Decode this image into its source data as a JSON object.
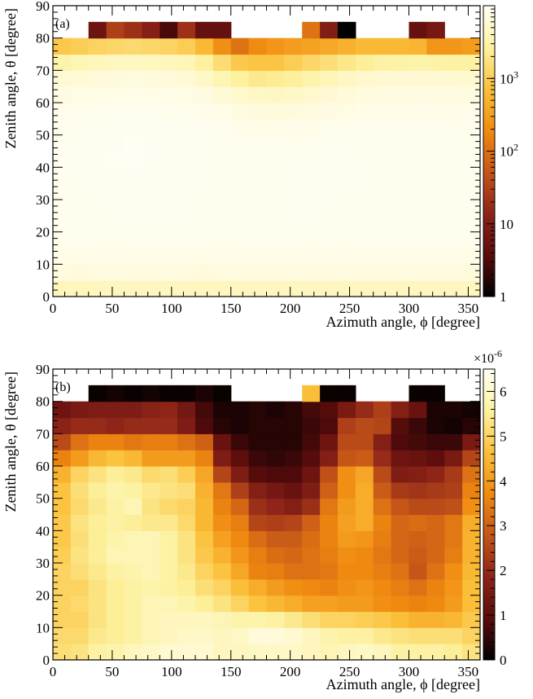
{
  "chart_data": [
    {
      "type": "heatmap",
      "panel_label": "(a)",
      "xlabel": "Azimuth angle, ϕ [degree]",
      "ylabel": "Zenith angle, θ [degree]",
      "xlim": [
        0,
        360
      ],
      "ylim": [
        0,
        90
      ],
      "x_bin_width": 15,
      "y_bin_width": 5,
      "x_ticks": [
        0,
        50,
        100,
        150,
        200,
        250,
        300,
        350
      ],
      "y_ticks": [
        0,
        10,
        20,
        30,
        40,
        50,
        60,
        70,
        80,
        90
      ],
      "colorbar": {
        "scale": "log",
        "range": [
          1,
          10000
        ],
        "ticks": [
          1,
          10,
          100,
          1000
        ],
        "tick_labels": [
          {
            "base": "1",
            "exp": ""
          },
          {
            "base": "10",
            "exp": ""
          },
          {
            "base": "10",
            "exp": "2"
          },
          {
            "base": "10",
            "exp": "3"
          }
        ],
        "multiplier": ""
      },
      "colormap": [
        "#000000",
        "#5a0c0c",
        "#8c2318",
        "#c45518",
        "#f08a10",
        "#fbc03a",
        "#fdf2a0",
        "#fffef5"
      ],
      "z_rows_from_bottom": [
        [
          4200,
          4200,
          4300,
          4300,
          4300,
          4300,
          4300,
          4300,
          4300,
          4300,
          4300,
          4300,
          4300,
          4300,
          4300,
          4300,
          4300,
          4300,
          4300,
          4300,
          4300,
          4300,
          4300,
          4300
        ],
        [
          7000,
          6800,
          7000,
          7000,
          7000,
          7000,
          7000,
          7000,
          6800,
          7000,
          7000,
          7000,
          7000,
          7000,
          7000,
          7000,
          7000,
          7000,
          7000,
          7000,
          7000,
          7000,
          7000,
          6800
        ],
        [
          8000,
          8200,
          8200,
          8300,
          8200,
          8400,
          8400,
          8200,
          8200,
          8300,
          8300,
          8300,
          8200,
          8200,
          8300,
          8300,
          8300,
          8200,
          8200,
          8300,
          8200,
          8300,
          8200,
          8200
        ],
        [
          8500,
          8600,
          8700,
          8700,
          8800,
          8800,
          8800,
          8700,
          8600,
          8700,
          8800,
          8800,
          8600,
          8700,
          8700,
          8800,
          8600,
          8700,
          8800,
          8700,
          8800,
          8800,
          8700,
          8700
        ],
        [
          8700,
          8800,
          8900,
          9000,
          9000,
          9000,
          9000,
          9000,
          8900,
          8800,
          8900,
          8900,
          8900,
          9000,
          9000,
          9000,
          9000,
          8900,
          9000,
          9000,
          9000,
          8900,
          8900,
          8800
        ],
        [
          8900,
          9000,
          9000,
          9100,
          9200,
          9200,
          9100,
          9100,
          9000,
          8900,
          8900,
          9000,
          9000,
          9100,
          9100,
          9000,
          9000,
          9000,
          9000,
          9000,
          9000,
          9000,
          8900,
          8900
        ],
        [
          9000,
          9000,
          9100,
          9200,
          9200,
          9200,
          9200,
          9100,
          9000,
          8900,
          8900,
          9000,
          9000,
          9000,
          9100,
          9100,
          9000,
          9000,
          9000,
          9000,
          9000,
          9000,
          9000,
          8900
        ],
        [
          9000,
          9100,
          9200,
          9300,
          9400,
          9300,
          9200,
          9100,
          9100,
          9000,
          9000,
          9000,
          9000,
          9100,
          9100,
          9100,
          9100,
          9100,
          9000,
          9000,
          9000,
          9000,
          9000,
          8900
        ],
        [
          9100,
          9200,
          9300,
          9500,
          9500,
          9400,
          9300,
          9200,
          9100,
          9000,
          8900,
          8900,
          8900,
          9000,
          9000,
          9100,
          9100,
          9000,
          9000,
          9000,
          9000,
          9000,
          9000,
          8900
        ],
        [
          9000,
          9100,
          9200,
          9400,
          9500,
          9400,
          9300,
          9200,
          9100,
          8900,
          8800,
          8700,
          8700,
          8700,
          8800,
          8900,
          8900,
          8900,
          8900,
          8900,
          8900,
          8900,
          8900,
          8900
        ],
        [
          8800,
          8900,
          9000,
          9100,
          9200,
          9200,
          9100,
          9000,
          8900,
          8600,
          8400,
          8200,
          8200,
          8300,
          8400,
          8500,
          8600,
          8700,
          8700,
          8700,
          8800,
          8800,
          8700,
          8700
        ],
        [
          8400,
          8500,
          8700,
          8800,
          8800,
          8800,
          8700,
          8600,
          8300,
          7800,
          7000,
          6800,
          6800,
          6900,
          7100,
          7400,
          7700,
          8000,
          8100,
          8200,
          8300,
          8300,
          8300,
          8300
        ],
        [
          7500,
          7700,
          7900,
          8100,
          8200,
          8100,
          8000,
          7800,
          7200,
          6300,
          5200,
          4800,
          4600,
          4900,
          5400,
          6000,
          6600,
          7000,
          7200,
          7300,
          7400,
          7300,
          7300,
          7300
        ],
        [
          6000,
          6200,
          6600,
          6800,
          7000,
          6800,
          6600,
          6200,
          5000,
          3600,
          2600,
          2100,
          2300,
          2500,
          3200,
          3800,
          4600,
          5300,
          5600,
          5800,
          5800,
          5800,
          5600,
          5500
        ],
        [
          3200,
          3600,
          4000,
          4400,
          4600,
          4400,
          4200,
          3800,
          2600,
          1500,
          900,
          800,
          800,
          1000,
          1300,
          1600,
          2000,
          2400,
          2800,
          3000,
          3200,
          3000,
          2800,
          2800
        ],
        [
          900,
          1000,
          1200,
          1300,
          1400,
          1300,
          1200,
          1000,
          600,
          220,
          110,
          200,
          250,
          300,
          350,
          400,
          500,
          600,
          600,
          600,
          550,
          250,
          260,
          300
        ],
        [
          null,
          null,
          6,
          30,
          20,
          12,
          3,
          20,
          5,
          5,
          null,
          null,
          null,
          null,
          110,
          10,
          1,
          null,
          null,
          null,
          5,
          8,
          null,
          null
        ],
        [
          null,
          null,
          null,
          null,
          null,
          null,
          null,
          null,
          null,
          null,
          null,
          null,
          null,
          null,
          null,
          null,
          null,
          null,
          null,
          null,
          null,
          null,
          null,
          null
        ]
      ]
    },
    {
      "type": "heatmap",
      "panel_label": "(b)",
      "xlabel": "Azimuth angle, ϕ [degree]",
      "ylabel": "Zenith angle, θ [degree]",
      "xlim": [
        0,
        360
      ],
      "ylim": [
        0,
        90
      ],
      "x_bin_width": 15,
      "y_bin_width": 5,
      "x_ticks": [
        0,
        50,
        100,
        150,
        200,
        250,
        300,
        350
      ],
      "y_ticks": [
        0,
        10,
        20,
        30,
        40,
        50,
        60,
        70,
        80,
        90
      ],
      "colorbar": {
        "scale": "linear",
        "range": [
          0,
          6.5
        ],
        "ticks": [
          0,
          1,
          2,
          3,
          4,
          5,
          6
        ],
        "tick_labels": [
          {
            "base": "0",
            "exp": ""
          },
          {
            "base": "1",
            "exp": ""
          },
          {
            "base": "2",
            "exp": ""
          },
          {
            "base": "3",
            "exp": ""
          },
          {
            "base": "4",
            "exp": ""
          },
          {
            "base": "5",
            "exp": ""
          },
          {
            "base": "6",
            "exp": ""
          }
        ],
        "multiplier": "×10",
        "multiplier_exp": "-6"
      },
      "colormap": [
        "#000000",
        "#5a0c0c",
        "#8c2318",
        "#c45518",
        "#f08a10",
        "#fbc03a",
        "#fdf2a0",
        "#fffef5"
      ],
      "z_rows_from_bottom": [
        [
          5.2,
          5.3,
          5.6,
          5.7,
          5.9,
          6.0,
          6.1,
          6.1,
          6.1,
          5.9,
          5.9,
          6.0,
          6.0,
          6.0,
          5.9,
          5.8,
          5.9,
          6.0,
          5.9,
          5.6,
          5.6,
          5.6,
          5.5,
          5.3
        ],
        [
          5.1,
          5.1,
          5.4,
          5.5,
          5.6,
          5.8,
          5.9,
          6.0,
          6.0,
          5.9,
          6.0,
          6.2,
          6.2,
          6.1,
          5.9,
          5.7,
          5.6,
          5.6,
          5.4,
          5.3,
          5.2,
          5.2,
          5.2,
          5.0
        ],
        [
          5.0,
          5.0,
          5.3,
          5.5,
          5.6,
          5.8,
          5.9,
          5.9,
          5.9,
          5.8,
          5.7,
          5.7,
          5.6,
          5.4,
          5.2,
          5.0,
          5.0,
          4.9,
          4.8,
          4.6,
          4.4,
          4.4,
          4.5,
          4.8
        ],
        [
          5.0,
          5.1,
          5.3,
          5.5,
          5.6,
          5.8,
          5.8,
          5.7,
          5.5,
          5.3,
          5.0,
          4.7,
          4.5,
          4.3,
          4.1,
          4.1,
          4.0,
          4.0,
          3.8,
          3.7,
          3.6,
          3.7,
          4.0,
          4.6
        ],
        [
          5.0,
          5.0,
          5.3,
          5.5,
          5.6,
          5.7,
          5.6,
          5.5,
          5.2,
          5.0,
          4.6,
          4.3,
          4.0,
          3.8,
          3.7,
          3.6,
          3.8,
          3.9,
          3.7,
          3.5,
          3.3,
          3.6,
          3.9,
          4.6
        ],
        [
          5.0,
          5.2,
          5.4,
          5.6,
          5.7,
          5.8,
          5.6,
          5.4,
          5.0,
          4.7,
          4.2,
          3.6,
          3.5,
          3.3,
          3.3,
          3.4,
          3.7,
          3.7,
          3.5,
          3.3,
          2.8,
          3.3,
          3.8,
          4.5
        ],
        [
          4.9,
          5.3,
          5.5,
          5.8,
          5.8,
          5.8,
          5.6,
          5.3,
          4.8,
          4.4,
          3.9,
          3.5,
          3.2,
          3.1,
          3.3,
          3.5,
          3.8,
          3.7,
          3.4,
          3.1,
          2.9,
          3.1,
          3.5,
          4.4
        ],
        [
          4.8,
          5.2,
          5.5,
          5.7,
          5.8,
          5.8,
          5.6,
          5.3,
          4.7,
          4.1,
          3.7,
          3.2,
          2.9,
          2.9,
          3.2,
          3.6,
          4.0,
          3.9,
          3.5,
          3.1,
          3.0,
          3.1,
          3.4,
          4.4
        ],
        [
          4.8,
          5.3,
          5.5,
          5.6,
          5.5,
          5.4,
          5.4,
          5.1,
          4.5,
          3.8,
          3.5,
          2.5,
          2.4,
          2.5,
          3.0,
          3.6,
          4.1,
          4.3,
          3.6,
          3.1,
          3.2,
          3.1,
          3.4,
          4.3
        ],
        [
          4.7,
          5.1,
          5.4,
          5.6,
          5.8,
          5.3,
          5.1,
          5.0,
          4.5,
          3.6,
          3.1,
          2.1,
          1.9,
          1.7,
          2.1,
          3.4,
          4.0,
          4.3,
          3.3,
          2.8,
          2.6,
          2.6,
          2.7,
          3.8
        ],
        [
          4.7,
          5.2,
          5.5,
          5.7,
          5.6,
          5.4,
          5.3,
          5.2,
          4.4,
          3.4,
          2.4,
          1.7,
          1.4,
          1.2,
          1.6,
          3.0,
          3.8,
          4.3,
          2.9,
          2.3,
          2.2,
          2.3,
          2.4,
          3.6
        ],
        [
          4.4,
          5.0,
          5.3,
          5.5,
          5.4,
          5.1,
          5.2,
          4.9,
          4.2,
          2.5,
          1.6,
          0.9,
          0.8,
          0.8,
          1.3,
          2.7,
          3.8,
          4.2,
          2.6,
          1.6,
          1.7,
          1.9,
          2.3,
          3.3
        ],
        [
          3.6,
          4.0,
          4.5,
          4.7,
          4.5,
          4.0,
          4.0,
          4.0,
          3.6,
          1.6,
          1.0,
          0.6,
          0.5,
          0.6,
          0.9,
          1.7,
          2.8,
          2.9,
          2.0,
          1.3,
          1.2,
          1.0,
          1.5,
          2.5
        ],
        [
          2.6,
          3.3,
          3.6,
          3.6,
          3.4,
          3.5,
          3.5,
          3.3,
          3.0,
          1.2,
          0.6,
          0.4,
          0.4,
          0.4,
          0.7,
          1.3,
          2.6,
          2.6,
          1.7,
          0.8,
          0.7,
          0.6,
          0.6,
          1.5
        ],
        [
          1.8,
          2.0,
          2.0,
          1.9,
          2.0,
          2.0,
          2.0,
          1.6,
          0.8,
          0.4,
          0.3,
          0.4,
          0.4,
          0.4,
          0.6,
          0.8,
          2.4,
          2.6,
          2.5,
          0.9,
          0.6,
          0.3,
          0.2,
          0.4
        ],
        [
          1.3,
          1.5,
          1.6,
          1.6,
          1.6,
          1.8,
          1.9,
          1.4,
          0.7,
          0.3,
          0.3,
          0.4,
          0.3,
          0.4,
          0.7,
          0.9,
          1.5,
          2.0,
          2.4,
          1.7,
          1.2,
          0.3,
          0.3,
          0.2
        ],
        [
          null,
          null,
          0.1,
          0.2,
          0.1,
          0.2,
          0.1,
          0.1,
          0.3,
          0.1,
          null,
          null,
          null,
          null,
          4.6,
          0.1,
          0.1,
          null,
          null,
          null,
          0.1,
          0.1,
          null,
          null
        ],
        [
          null,
          null,
          null,
          null,
          null,
          null,
          null,
          null,
          null,
          null,
          null,
          null,
          null,
          null,
          null,
          null,
          null,
          null,
          null,
          null,
          null,
          null,
          null,
          null
        ]
      ]
    }
  ]
}
